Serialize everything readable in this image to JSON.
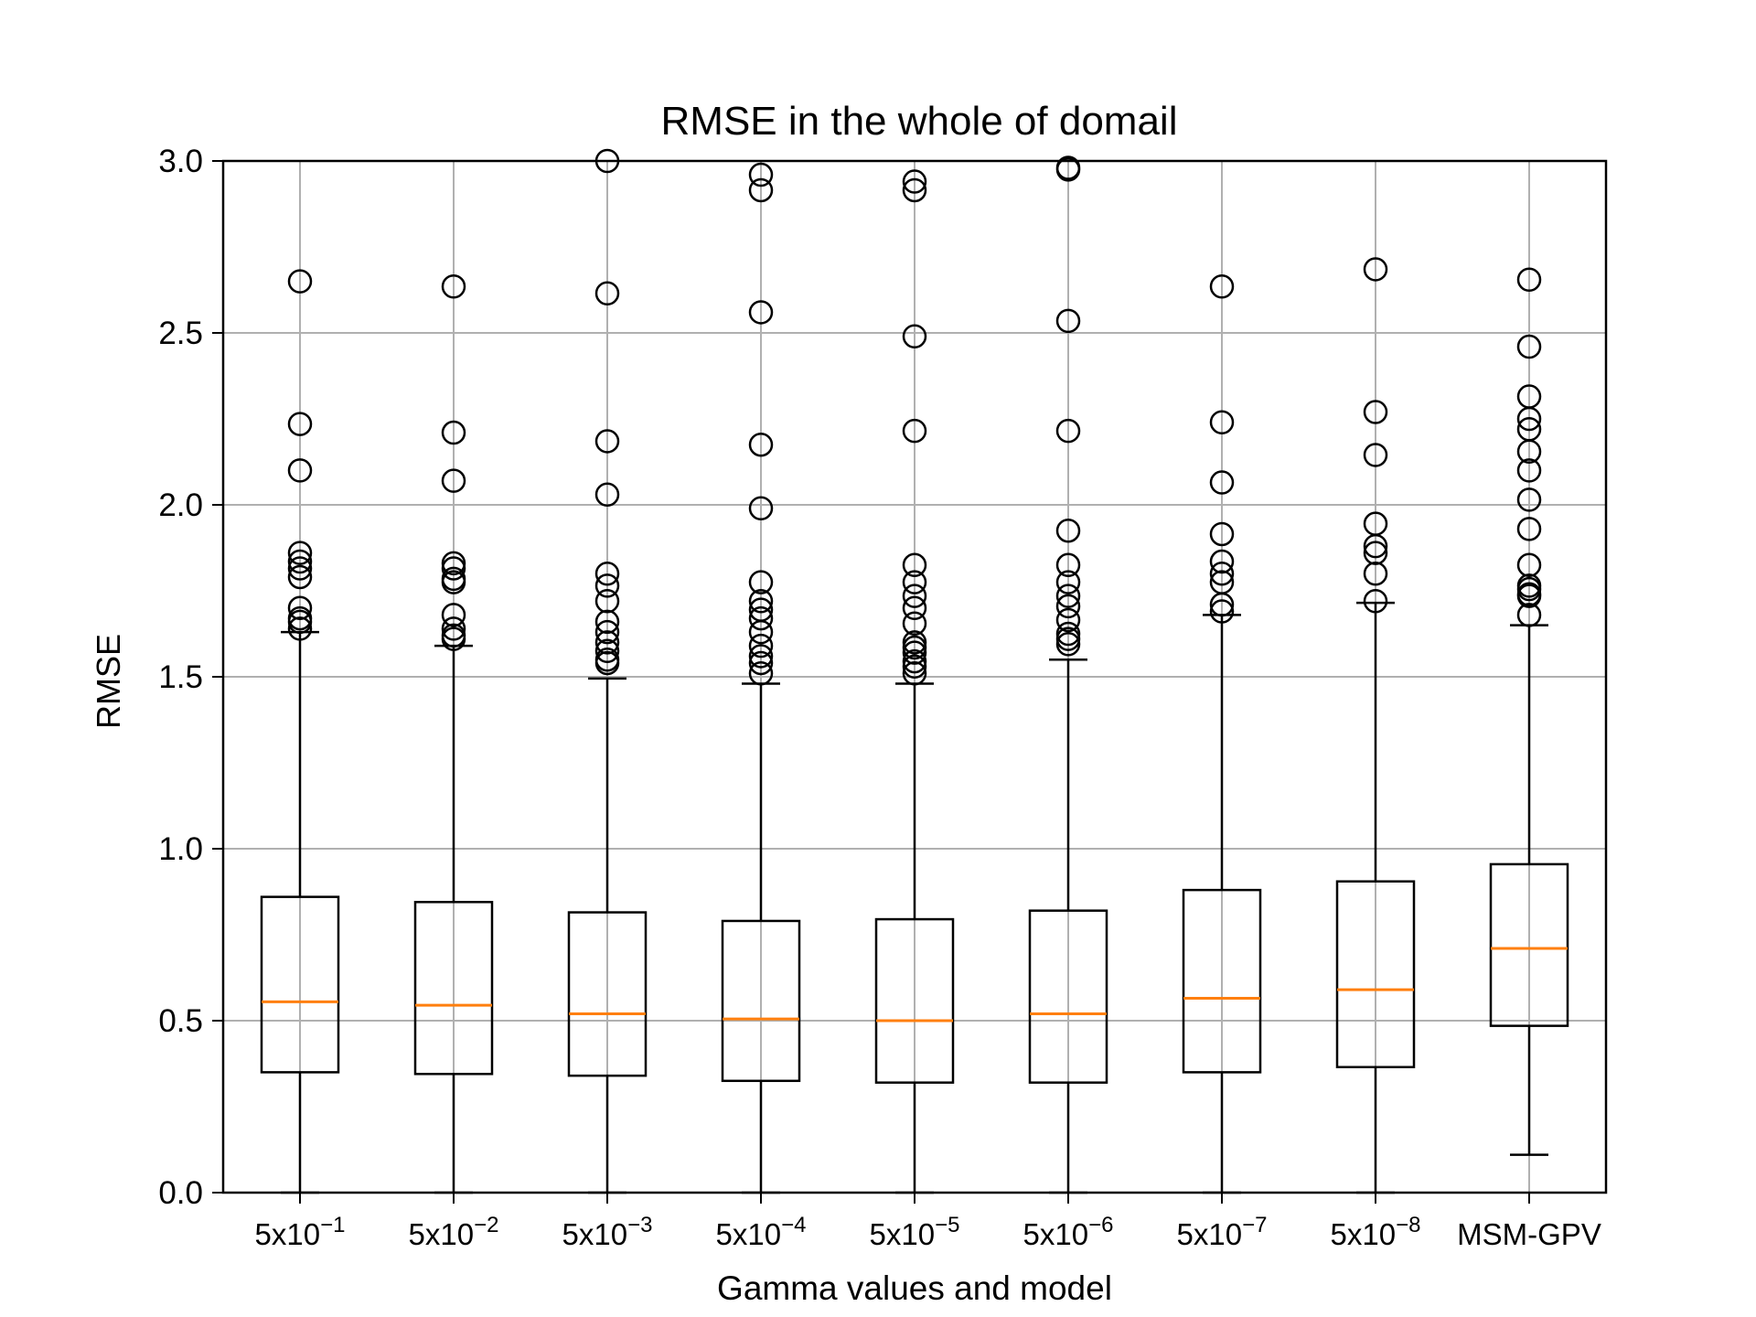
{
  "chart_data": {
    "type": "box",
    "title": "RMSE in the whole of domail",
    "xlabel": "Gamma values and model",
    "ylabel": "RMSE",
    "ylim": [
      0,
      3.0
    ],
    "yticks": [
      "0.0",
      "0.5",
      "1.0",
      "1.5",
      "2.0",
      "2.5",
      "3.0"
    ],
    "grid": true,
    "colors": {
      "median": "#ff7f0e",
      "box": "#000000",
      "grid": "#b0b0b0"
    },
    "categories": [
      {
        "base": "5x10",
        "exp": "−1"
      },
      {
        "base": "5x10",
        "exp": "−2"
      },
      {
        "base": "5x10",
        "exp": "−3"
      },
      {
        "base": "5x10",
        "exp": "−4"
      },
      {
        "base": "5x10",
        "exp": "−5"
      },
      {
        "base": "5x10",
        "exp": "−6"
      },
      {
        "base": "5x10",
        "exp": "−7"
      },
      {
        "base": "5x10",
        "exp": "−8"
      },
      {
        "base": "MSM-GPV",
        "exp": ""
      }
    ],
    "boxes": [
      {
        "whisker_low": 0.0,
        "q1": 0.35,
        "median": 0.555,
        "q3": 0.86,
        "whisker_high": 1.63,
        "outliers": [
          2.65,
          2.235,
          2.1,
          1.86,
          1.835,
          1.815,
          1.79,
          1.7,
          1.67,
          1.66,
          1.64
        ]
      },
      {
        "whisker_low": 0.0,
        "q1": 0.345,
        "median": 0.545,
        "q3": 0.845,
        "whisker_high": 1.59,
        "outliers": [
          2.635,
          2.21,
          2.07,
          1.83,
          1.815,
          1.785,
          1.775,
          1.68,
          1.64,
          1.62,
          1.61
        ]
      },
      {
        "whisker_low": 0.0,
        "q1": 0.34,
        "median": 0.52,
        "q3": 0.815,
        "whisker_high": 1.495,
        "outliers": [
          3.0,
          2.615,
          2.185,
          2.03,
          1.8,
          1.765,
          1.72,
          1.66,
          1.63,
          1.6,
          1.575,
          1.55,
          1.54
        ]
      },
      {
        "whisker_low": 0.0,
        "q1": 0.325,
        "median": 0.505,
        "q3": 0.79,
        "whisker_high": 1.48,
        "outliers": [
          2.96,
          2.915,
          2.56,
          2.175,
          1.99,
          1.775,
          1.72,
          1.695,
          1.67,
          1.63,
          1.59,
          1.56,
          1.54,
          1.51
        ]
      },
      {
        "whisker_low": 0.0,
        "q1": 0.32,
        "median": 0.5,
        "q3": 0.795,
        "whisker_high": 1.48,
        "outliers": [
          2.94,
          2.915,
          2.49,
          2.215,
          1.825,
          1.775,
          1.735,
          1.7,
          1.655,
          1.6,
          1.585,
          1.57,
          1.545,
          1.53,
          1.51
        ]
      },
      {
        "whisker_low": 0.0,
        "q1": 0.32,
        "median": 0.52,
        "q3": 0.82,
        "whisker_high": 1.55,
        "outliers": [
          2.98,
          2.975,
          2.535,
          2.215,
          1.925,
          1.825,
          1.775,
          1.735,
          1.705,
          1.665,
          1.625,
          1.61,
          1.595
        ]
      },
      {
        "whisker_low": 0.0,
        "q1": 0.35,
        "median": 0.565,
        "q3": 0.88,
        "whisker_high": 1.68,
        "outliers": [
          2.635,
          2.24,
          2.065,
          1.915,
          1.835,
          1.8,
          1.775,
          1.71,
          1.69
        ]
      },
      {
        "whisker_low": 0.0,
        "q1": 0.365,
        "median": 0.59,
        "q3": 0.905,
        "whisker_high": 1.715,
        "outliers": [
          2.685,
          2.27,
          2.145,
          1.945,
          1.88,
          1.86,
          1.8,
          1.72
        ]
      },
      {
        "whisker_low": 0.11,
        "q1": 0.485,
        "median": 0.71,
        "q3": 0.955,
        "whisker_high": 1.65,
        "outliers": [
          2.655,
          2.46,
          2.315,
          2.25,
          2.22,
          2.155,
          2.1,
          2.015,
          1.93,
          1.825,
          1.765,
          1.755,
          1.74,
          1.735,
          1.68
        ]
      }
    ]
  }
}
